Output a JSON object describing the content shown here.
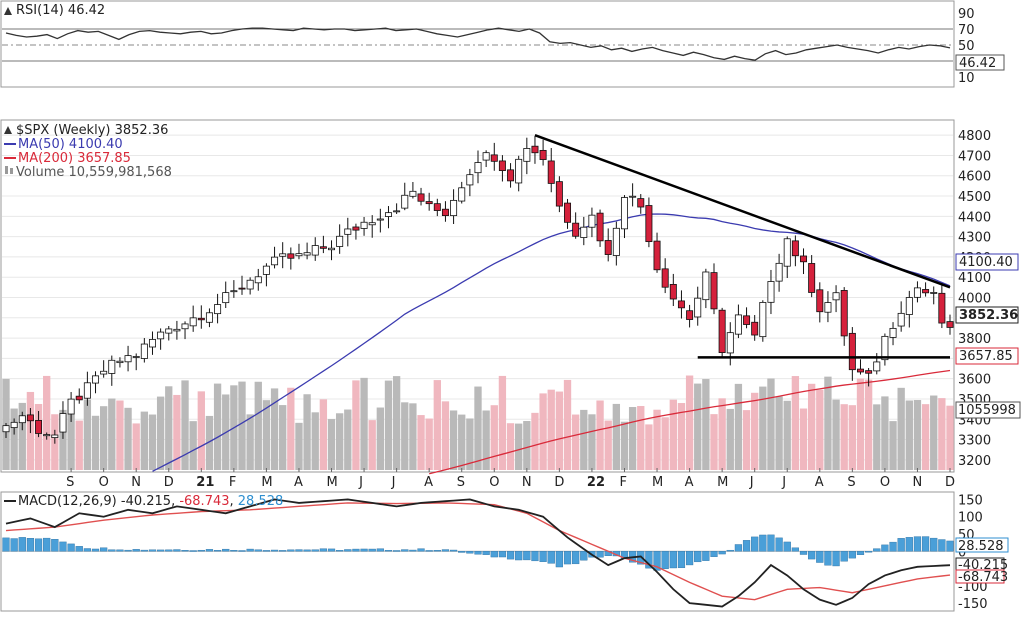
{
  "chart_data": [
    {
      "type": "line",
      "panel": "rsi",
      "title": "RSI(14) 46.42",
      "indicator": "RSI(14)",
      "current_value": 46.42,
      "current_value_label": "46.42",
      "y_ticks": [
        90,
        70,
        50,
        30,
        10
      ],
      "overbought": 70,
      "oversold": 30,
      "ylim": [
        0,
        100
      ],
      "values": [
        65,
        62,
        60,
        61,
        63,
        58,
        64,
        68,
        66,
        67,
        62,
        57,
        63,
        67,
        68,
        66,
        65,
        64,
        66,
        67,
        64,
        65,
        68,
        70,
        71,
        71,
        70,
        69,
        68,
        71,
        70,
        69,
        70,
        70,
        68,
        69,
        70,
        71,
        68,
        69,
        70,
        67,
        64,
        62,
        60,
        63,
        66,
        69,
        71,
        69,
        67,
        70,
        65,
        54,
        52,
        53,
        50,
        47,
        49,
        44,
        46,
        42,
        45,
        47,
        43,
        40,
        37,
        41,
        38,
        34,
        32,
        36,
        33,
        31,
        39,
        43,
        38,
        40,
        44,
        46,
        48,
        50,
        47,
        45,
        43,
        40,
        44,
        47,
        45,
        48,
        50,
        49,
        46.42
      ]
    },
    {
      "type": "candlestick",
      "panel": "price",
      "symbol": "$SPX (Weekly)",
      "last": 3852.36,
      "last_label": "3852.36",
      "ma50_label": "MA(50) 4100.40",
      "ma200_label": "MA(200) 3657.85",
      "volume_label": "Volume 10,559,981,568",
      "y_ticks": [
        4800,
        4700,
        4600,
        4500,
        4400,
        4300,
        4200,
        4100,
        4000,
        3900,
        3800,
        3700,
        3600,
        3500,
        3400,
        3300,
        3200
      ],
      "ylim": [
        3150,
        4850
      ],
      "x_labels": [
        "S",
        "O",
        "N",
        "D",
        "21",
        "F",
        "M",
        "A",
        "M",
        "J",
        "J",
        "A",
        "S",
        "O",
        "N",
        "D",
        "22",
        "F",
        "M",
        "A",
        "M",
        "J",
        "J",
        "A",
        "S",
        "O",
        "N",
        "D"
      ],
      "price_anchors": [
        [
          0,
          3365
        ],
        [
          2,
          3420
        ],
        [
          4,
          3350
        ],
        [
          6,
          3320
        ],
        [
          8,
          3480
        ],
        [
          10,
          3550
        ],
        [
          12,
          3640
        ],
        [
          14,
          3690
        ],
        [
          16,
          3720
        ],
        [
          18,
          3790
        ],
        [
          20,
          3850
        ],
        [
          22,
          3880
        ],
        [
          24,
          3920
        ],
        [
          26,
          3970
        ],
        [
          28,
          4020
        ],
        [
          30,
          4090
        ],
        [
          32,
          4150
        ],
        [
          34,
          4190
        ],
        [
          36,
          4200
        ],
        [
          38,
          4230
        ],
        [
          40,
          4260
        ],
        [
          42,
          4320
        ],
        [
          44,
          4370
        ],
        [
          46,
          4410
        ],
        [
          48,
          4450
        ],
        [
          50,
          4520
        ],
        [
          52,
          4440
        ],
        [
          54,
          4420
        ],
        [
          56,
          4560
        ],
        [
          58,
          4690
        ],
        [
          60,
          4700
        ],
        [
          62,
          4600
        ],
        [
          64,
          4750
        ],
        [
          66,
          4690
        ],
        [
          68,
          4450
        ],
        [
          70,
          4330
        ],
        [
          72,
          4400
        ],
        [
          74,
          4200
        ],
        [
          76,
          4520
        ],
        [
          78,
          4450
        ],
        [
          80,
          4150
        ],
        [
          82,
          4000
        ],
        [
          84,
          3900
        ],
        [
          86,
          4100
        ],
        [
          88,
          3750
        ],
        [
          90,
          3900
        ],
        [
          92,
          3800
        ],
        [
          94,
          4100
        ],
        [
          96,
          4290
        ],
        [
          98,
          4150
        ],
        [
          100,
          3950
        ],
        [
          102,
          4000
        ],
        [
          104,
          3640
        ],
        [
          106,
          3600
        ],
        [
          108,
          3800
        ],
        [
          110,
          3950
        ],
        [
          112,
          4050
        ],
        [
          114,
          4000
        ],
        [
          115,
          3880
        ],
        [
          116,
          3852
        ]
      ],
      "ma50_label_value": "4100.40",
      "ma200_label_value": "3657.85",
      "volume_axis_label": "1055998",
      "trendlines": [
        {
          "name": "resistance",
          "from": [
            65,
            4800
          ],
          "to": [
            116,
            4050
          ]
        },
        {
          "name": "support",
          "from": [
            85,
            3705
          ],
          "to": [
            116,
            3705
          ]
        }
      ]
    },
    {
      "type": "line",
      "panel": "macd",
      "title_prefix": "MACD(12,26,9)",
      "macd_label": "-40.215",
      "signal_label": "-68.743",
      "hist_label": "28.528",
      "y_ticks": [
        150,
        100,
        50,
        0,
        -50,
        -100,
        -150
      ],
      "ylim": [
        -170,
        160
      ],
      "macd_anchors": [
        [
          0,
          80
        ],
        [
          3,
          95
        ],
        [
          6,
          70
        ],
        [
          9,
          110
        ],
        [
          12,
          100
        ],
        [
          15,
          120
        ],
        [
          18,
          110
        ],
        [
          21,
          130
        ],
        [
          24,
          120
        ],
        [
          27,
          110
        ],
        [
          30,
          130
        ],
        [
          33,
          150
        ],
        [
          36,
          140
        ],
        [
          39,
          145
        ],
        [
          42,
          150
        ],
        [
          45,
          140
        ],
        [
          48,
          130
        ],
        [
          51,
          140
        ],
        [
          54,
          145
        ],
        [
          57,
          150
        ],
        [
          60,
          130
        ],
        [
          63,
          120
        ],
        [
          66,
          100
        ],
        [
          69,
          40
        ],
        [
          72,
          -10
        ],
        [
          74,
          -40
        ],
        [
          76,
          -20
        ],
        [
          78,
          -15
        ],
        [
          80,
          -60
        ],
        [
          82,
          -110
        ],
        [
          84,
          -150
        ],
        [
          86,
          -155
        ],
        [
          88,
          -160
        ],
        [
          90,
          -130
        ],
        [
          92,
          -90
        ],
        [
          94,
          -40
        ],
        [
          96,
          -70
        ],
        [
          98,
          -110
        ],
        [
          100,
          -140
        ],
        [
          102,
          -155
        ],
        [
          104,
          -135
        ],
        [
          106,
          -95
        ],
        [
          108,
          -70
        ],
        [
          110,
          -55
        ],
        [
          112,
          -45
        ],
        [
          116,
          -40.215
        ]
      ],
      "signal_anchors": [
        [
          0,
          60
        ],
        [
          6,
          70
        ],
        [
          12,
          90
        ],
        [
          18,
          105
        ],
        [
          24,
          115
        ],
        [
          30,
          120
        ],
        [
          36,
          130
        ],
        [
          42,
          140
        ],
        [
          48,
          138
        ],
        [
          54,
          140
        ],
        [
          60,
          135
        ],
        [
          64,
          110
        ],
        [
          68,
          60
        ],
        [
          72,
          20
        ],
        [
          76,
          -20
        ],
        [
          80,
          -45
        ],
        [
          84,
          -90
        ],
        [
          88,
          -130
        ],
        [
          92,
          -140
        ],
        [
          96,
          -110
        ],
        [
          100,
          -105
        ],
        [
          104,
          -120
        ],
        [
          108,
          -100
        ],
        [
          112,
          -80
        ],
        [
          116,
          -68.743
        ]
      ],
      "histogram_anchors": [
        [
          0,
          40
        ],
        [
          6,
          35
        ],
        [
          10,
          10
        ],
        [
          16,
          5
        ],
        [
          24,
          5
        ],
        [
          30,
          5
        ],
        [
          36,
          5
        ],
        [
          42,
          5
        ],
        [
          48,
          5
        ],
        [
          54,
          5
        ],
        [
          58,
          -10
        ],
        [
          62,
          -20
        ],
        [
          66,
          -30
        ],
        [
          68,
          -45
        ],
        [
          70,
          -35
        ],
        [
          72,
          -20
        ],
        [
          74,
          -10
        ],
        [
          76,
          -20
        ],
        [
          78,
          -40
        ],
        [
          80,
          -55
        ],
        [
          82,
          -50
        ],
        [
          84,
          -40
        ],
        [
          86,
          -25
        ],
        [
          88,
          -10
        ],
        [
          90,
          20
        ],
        [
          92,
          40
        ],
        [
          94,
          50
        ],
        [
          96,
          25
        ],
        [
          98,
          -10
        ],
        [
          100,
          -35
        ],
        [
          102,
          -40
        ],
        [
          104,
          -20
        ],
        [
          106,
          -5
        ],
        [
          108,
          20
        ],
        [
          110,
          35
        ],
        [
          112,
          45
        ],
        [
          114,
          40
        ],
        [
          116,
          28.528
        ]
      ]
    }
  ],
  "colors": {
    "up_candle": "#ffffff",
    "down_candle": "#d5213c",
    "candle_outline": "#111111",
    "ma50": "#3b3bb0",
    "ma200": "#d92a3a",
    "volume_up": "#b9b9b9",
    "volume_down": "#f0b7bf",
    "macd_line": "#222222",
    "signal_line": "#e05050",
    "histogram": "#4a9fd8",
    "trendline": "#000000",
    "grid": "#e8e8e8"
  }
}
